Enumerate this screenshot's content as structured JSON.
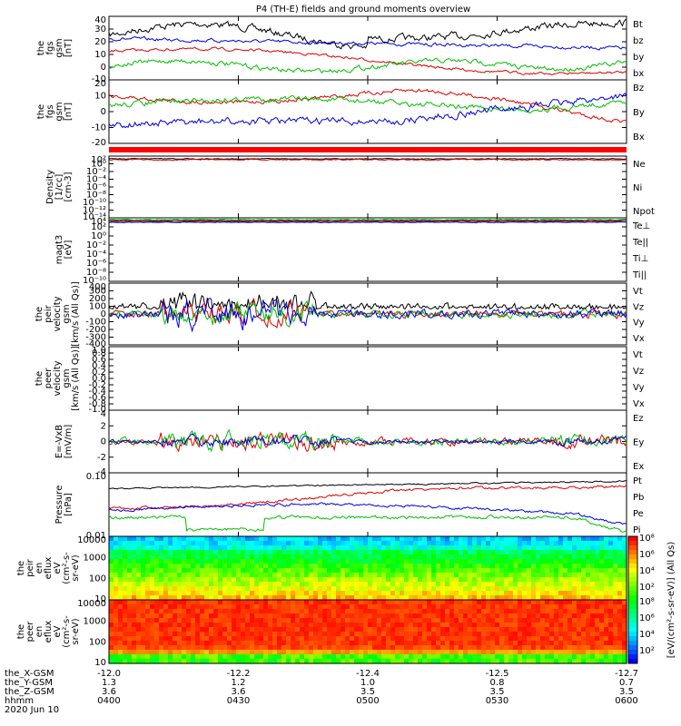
{
  "title": "P4 (TH-E) fields and ground moments overview",
  "colors": {
    "black": "#000000",
    "red": "#e00000",
    "green": "#00c000",
    "blue": "#0000e0"
  },
  "chart_data": [
    {
      "type": "line",
      "id": "fgs_gsm",
      "ylabel": [
        "the",
        "fgs",
        "gsm",
        "[nT]"
      ],
      "yticks": [
        "40",
        "30",
        "20",
        "10",
        "0",
        "-10"
      ],
      "legend": [
        {
          "name": "Bt",
          "color": "black"
        },
        {
          "name": "bz",
          "color": "red"
        },
        {
          "name": "by",
          "color": "green"
        },
        {
          "name": "bx",
          "color": "blue"
        }
      ]
    },
    {
      "type": "line",
      "id": "fgs_gsm_b",
      "ylabel": [
        "the",
        "fgs",
        "gsm",
        "[nT]"
      ],
      "yticks": [
        "20",
        "10",
        "0",
        "-10",
        "-20"
      ],
      "legend": [
        {
          "name": "Bz",
          "color": "red"
        },
        {
          "name": "By",
          "color": "green"
        },
        {
          "name": "Bx",
          "color": "blue"
        }
      ]
    },
    {
      "type": "line",
      "id": "density",
      "ylabel": [
        "Density",
        "[1/cc]",
        "[cm-3]"
      ],
      "yticks": [
        "10²",
        "10⁰",
        "10⁻²",
        "10⁻⁴",
        "10⁻⁶",
        "10⁻⁸",
        "10⁻¹⁰",
        "10⁻¹²",
        "10⁻¹⁴"
      ],
      "legend": [
        {
          "name": "Ne",
          "color": "red"
        },
        {
          "name": "Ni",
          "color": "black"
        },
        {
          "name": "Npot",
          "color": "blue"
        }
      ]
    },
    {
      "type": "line",
      "id": "temp",
      "ylabel": [
        "magt3",
        "[eV]"
      ],
      "yticks": [
        "10⁴",
        "10²",
        "10⁰",
        "10⁻²",
        "10⁻⁴",
        "10⁻⁶",
        "10⁻⁸",
        "10⁻¹⁰"
      ],
      "legend": [
        {
          "name": "Te⊥",
          "color": "red"
        },
        {
          "name": "Te||",
          "color": "black"
        },
        {
          "name": "Ti⊥",
          "color": "blue"
        },
        {
          "name": "Ti||",
          "color": "green"
        }
      ]
    },
    {
      "type": "line",
      "id": "vel_i",
      "ylabel": [
        "the",
        "peir",
        "velocity",
        "gsm",
        "[km/s (All Qs)]"
      ],
      "yticks": [
        "400",
        "300",
        "200",
        "100",
        "0",
        "-100",
        "-200",
        "-300",
        "-400"
      ],
      "legend": [
        {
          "name": "Vt",
          "color": "black"
        },
        {
          "name": "Vz",
          "color": "red"
        },
        {
          "name": "Vy",
          "color": "green"
        },
        {
          "name": "Vx",
          "color": "blue"
        }
      ]
    },
    {
      "type": "line",
      "id": "vel_e",
      "ylabel": [
        "the",
        "peer",
        "velocity",
        "gsm",
        "[km/s (All Qs)]"
      ],
      "yticks": [
        "1.0",
        "0.8",
        "0.6",
        "0.4",
        "0.2",
        "0.0",
        "-0.2",
        "-0.4",
        "-0.6",
        "-0.8",
        "-1.0"
      ],
      "legend": [
        {
          "name": "Vt",
          "color": "black"
        },
        {
          "name": "Vz",
          "color": "red"
        },
        {
          "name": "Vy",
          "color": "green"
        },
        {
          "name": "Vx",
          "color": "blue"
        }
      ]
    },
    {
      "type": "line",
      "id": "efield",
      "ylabel": [
        "E=-VxB",
        "[mV/m]"
      ],
      "yticks": [
        "4",
        "2",
        "0",
        "-2",
        "-4"
      ],
      "legend": [
        {
          "name": "Ez",
          "color": "red"
        },
        {
          "name": "Ey",
          "color": "green"
        },
        {
          "name": "Ex",
          "color": "blue"
        }
      ]
    },
    {
      "type": "line",
      "id": "pressure",
      "ylabel": [
        "Pressure",
        "[nPa]"
      ],
      "yticks": [
        "0.10",
        "0.01"
      ],
      "legend": [
        {
          "name": "Pt",
          "color": "black"
        },
        {
          "name": "Pb",
          "color": "red"
        },
        {
          "name": "Pe",
          "color": "green"
        },
        {
          "name": "Pi",
          "color": "blue"
        }
      ]
    },
    {
      "type": "heatmap",
      "id": "peir_eflux",
      "ylabel": [
        "the",
        "peir",
        "en",
        "eflux",
        "eV",
        "(cm²-s-",
        "sr-eV)"
      ],
      "yticks": [
        "10000",
        "1000",
        "100",
        "10"
      ]
    },
    {
      "type": "heatmap",
      "id": "peer_eflux",
      "ylabel": [
        "the",
        "peer",
        "en",
        "eflux",
        "eV",
        "(cm²-s-",
        "sr-eV)"
      ],
      "yticks": [
        "10000",
        "1000",
        "100",
        "10"
      ]
    }
  ],
  "colorbar": {
    "label": "[eV/(cm²-s-sr-eV)] (All Qs)",
    "top_ticks": [
      "10⁸",
      "10⁶",
      "10⁴",
      "10²"
    ],
    "bottom_ticks": [
      "10⁸",
      "10⁶",
      "10⁴",
      "10²"
    ]
  },
  "xaxis": {
    "rows": [
      {
        "label": "the_X-GSM",
        "values": [
          "-12.0",
          "-12.2",
          "-12.4",
          "-12.5",
          "-12.7"
        ]
      },
      {
        "label": "the_Y-GSM",
        "values": [
          "1.3",
          "1.2",
          "1.0",
          "0.8",
          "0.7"
        ]
      },
      {
        "label": "the_Z-GSM",
        "values": [
          "3.6",
          "3.6",
          "3.5",
          "3.5",
          "3.5"
        ]
      },
      {
        "label": "hhmm",
        "values": [
          "0400",
          "0430",
          "0500",
          "0530",
          "0600"
        ]
      }
    ],
    "date": "2020 Jun 10"
  }
}
